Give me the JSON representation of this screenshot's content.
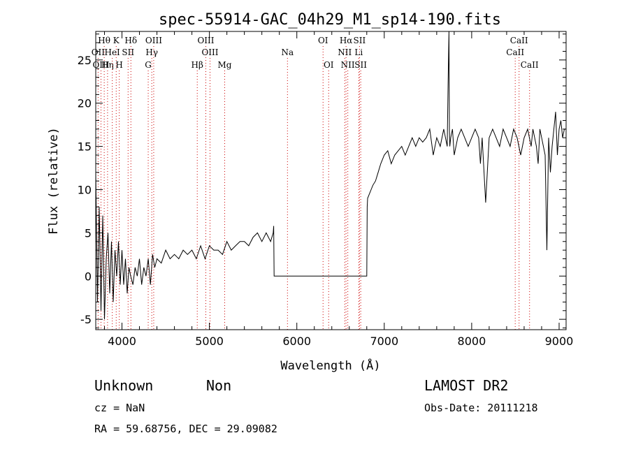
{
  "chart_data": {
    "type": "line",
    "title": "spec-55914-GAC_04h29_M1_sp14-190.fits",
    "xlabel": "Wavelength (Å)",
    "ylabel": "Flux (relative)",
    "xlim": [
      3700,
      9080
    ],
    "ylim": [
      -6.2,
      28.3
    ],
    "xticks": [
      4000,
      5000,
      6000,
      7000,
      8000,
      9000
    ],
    "yticks": [
      -5,
      0,
      5,
      10,
      15,
      20,
      25
    ],
    "grid": false,
    "line_color": "#000000",
    "marker_color": "#cc0000",
    "series": [
      {
        "x": [
          3700,
          3720,
          3740,
          3760,
          3780,
          3800,
          3820,
          3840,
          3860,
          3880,
          3900,
          3920,
          3940,
          3960,
          3980,
          4000,
          4020,
          4040,
          4060,
          4080,
          4100,
          4125,
          4150,
          4175,
          4200,
          4225,
          4250,
          4275,
          4300,
          4325,
          4350,
          4375,
          4400,
          4450,
          4500,
          4550,
          4600,
          4650,
          4700,
          4750,
          4800,
          4850,
          4900,
          4950,
          5000,
          5050,
          5100,
          5150,
          5200,
          5250,
          5300,
          5350,
          5400,
          5450,
          5500,
          5550,
          5600,
          5650,
          5700,
          5730,
          5735,
          5740,
          6800,
          6805,
          6810,
          6830,
          6850,
          6870,
          6900,
          6930,
          6960,
          7000,
          7040,
          7080,
          7120,
          7160,
          7200,
          7240,
          7280,
          7320,
          7360,
          7400,
          7440,
          7480,
          7520,
          7560,
          7600,
          7640,
          7680,
          7700,
          7720,
          7730,
          7740,
          7745,
          7750,
          7760,
          7780,
          7800,
          7840,
          7880,
          7920,
          7960,
          8000,
          8040,
          8080,
          8100,
          8120,
          8160,
          8200,
          8240,
          8280,
          8320,
          8360,
          8400,
          8440,
          8480,
          8520,
          8560,
          8600,
          8640,
          8680,
          8700,
          8720,
          8740,
          8760,
          8780,
          8800,
          8820,
          8840,
          8860,
          8880,
          8900,
          8920,
          8940,
          8960,
          8980,
          9000,
          9020,
          9040,
          9060,
          9080
        ],
        "values": [
          12,
          -3,
          8,
          -4,
          7,
          -5,
          2,
          5,
          -2,
          4,
          -3,
          3,
          0,
          4,
          -1,
          3,
          -1,
          2,
          -2,
          1,
          0,
          -1,
          1,
          0,
          2,
          -1,
          1,
          0,
          2,
          -1,
          2.5,
          1,
          2,
          1.5,
          3,
          2,
          2.5,
          2,
          3,
          2.5,
          3,
          2,
          3.5,
          2,
          3.5,
          3,
          3,
          2.5,
          4,
          3,
          3.5,
          4,
          4,
          3.5,
          4.5,
          5,
          4,
          5,
          4,
          5,
          5.8,
          0,
          0,
          8,
          9,
          9.5,
          10,
          10.5,
          11,
          12,
          13,
          14,
          14.5,
          13,
          14,
          14.5,
          15,
          14,
          15,
          16,
          15,
          16,
          15.5,
          16,
          17,
          14,
          16,
          15,
          17,
          16,
          15,
          22,
          28.3,
          17,
          15,
          16,
          17,
          14,
          16,
          17,
          16,
          15,
          16,
          17,
          16,
          13,
          16,
          8.5,
          16,
          17,
          16,
          15,
          17,
          16,
          15,
          17,
          16,
          14,
          16,
          17,
          15,
          17,
          16,
          15,
          13,
          17,
          16,
          15,
          14,
          3,
          16,
          12,
          15,
          17,
          19,
          14,
          17,
          18,
          16,
          17,
          17
        ]
      }
    ],
    "line_markers": [
      {
        "label": "Hθ",
        "x": 3797,
        "row": 1
      },
      {
        "label": "OII",
        "x": 3727,
        "row": 2
      },
      {
        "label": "OIII",
        "x": 3760,
        "row": 3
      },
      {
        "label": "Hη",
        "x": 3835,
        "row": 3
      },
      {
        "label": "K",
        "x": 3934,
        "row": 1
      },
      {
        "label": "HeI",
        "x": 3889,
        "row": 2
      },
      {
        "label": "H",
        "x": 3969,
        "row": 3
      },
      {
        "label": "SII",
        "x": 4070,
        "row": 2
      },
      {
        "label": "Hδ",
        "x": 4102,
        "row": 1
      },
      {
        "label": "OIII",
        "x": 4363,
        "row": 1
      },
      {
        "label": "Hγ",
        "x": 4341,
        "row": 2
      },
      {
        "label": "G",
        "x": 4300,
        "row": 3
      },
      {
        "label": "Hβ",
        "x": 4861,
        "row": 3
      },
      {
        "label": "OIII",
        "x": 4959,
        "row": 1
      },
      {
        "label": "OIII",
        "x": 5007,
        "row": 2
      },
      {
        "label": "Mg",
        "x": 5175,
        "row": 3
      },
      {
        "label": "Na",
        "x": 5893,
        "row": 2
      },
      {
        "label": "OI",
        "x": 6300,
        "row": 1
      },
      {
        "label": "OI",
        "x": 6364,
        "row": 3
      },
      {
        "label": "Hα",
        "x": 6563,
        "row": 1
      },
      {
        "label": "NII",
        "x": 6548,
        "row": 2
      },
      {
        "label": "NII",
        "x": 6583,
        "row": 3
      },
      {
        "label": "SII",
        "x": 6717,
        "row": 1
      },
      {
        "label": "Li",
        "x": 6708,
        "row": 2
      },
      {
        "label": "SII",
        "x": 6731,
        "row": 3
      },
      {
        "label": "CaII",
        "x": 8542,
        "row": 1
      },
      {
        "label": "CaII",
        "x": 8498,
        "row": 2
      },
      {
        "label": "CaII",
        "x": 8662,
        "row": 3
      }
    ]
  },
  "info": {
    "class": "Unknown",
    "subclass": "Non",
    "survey": "LAMOST DR2",
    "cz": "cz = NaN",
    "obs_date": "Obs-Date: 20111218",
    "coords": "RA =  59.68756, DEC =  29.09082"
  }
}
